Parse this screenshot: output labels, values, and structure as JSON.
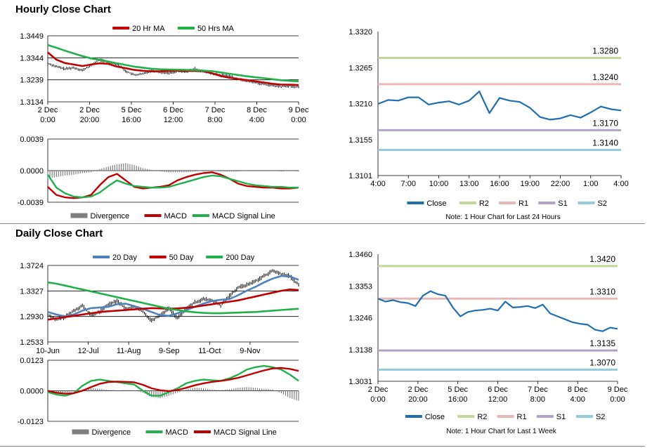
{
  "sections": [
    {
      "id": "hourly",
      "title": "Hourly Close Chart",
      "note": "Note: 1 Hour Chart for Last 24 Hours"
    },
    {
      "id": "daily",
      "title": "Daily Close Chart",
      "note": "Note: 1 Hour Chart for  Last 1 Week"
    }
  ],
  "colors": {
    "red": "#c00000",
    "green": "#21b04b",
    "blue": "#4f81bd",
    "close": "#1f6fb2",
    "R2": "#c3d69b",
    "R1": "#e6b8b7",
    "S1": "#b3a2c7",
    "S2": "#93cddd",
    "divergence": "#7f7f7f"
  },
  "chart_data": [
    {
      "id": "hourly-price",
      "type": "line",
      "legend": [
        "20 Hr MA",
        "50 Hrs MA"
      ],
      "y_ticks": [
        "1.3449",
        "1.3344",
        "1.3239",
        "1.3134"
      ],
      "ylim": [
        1.3134,
        1.3449
      ],
      "x_ticks": [
        [
          "2 Dec",
          "0:00"
        ],
        [
          "2 Dec",
          "20:00"
        ],
        [
          "5 Dec",
          "16:00"
        ],
        [
          "6 Dec",
          "12:00"
        ],
        [
          "7 Dec",
          "8:00"
        ],
        [
          "8 Dec",
          "4:00"
        ],
        [
          "9 Dec",
          "0:00"
        ]
      ],
      "price": [
        1.3318,
        1.3302,
        1.3291,
        1.3297,
        1.3284,
        1.3308,
        1.3335,
        1.3322,
        1.3316,
        1.3281,
        1.3262,
        1.3267,
        1.3284,
        1.3275,
        1.3272,
        1.3281,
        1.3278,
        1.3292,
        1.3279,
        1.3268,
        1.3262,
        1.3258,
        1.3242,
        1.3234,
        1.3227,
        1.3218,
        1.3211,
        1.3206,
        1.321,
        1.3204
      ],
      "series": [
        {
          "name": "20 Hr MA",
          "color": "red",
          "values": [
            1.337,
            1.3335,
            1.3319,
            1.3312,
            1.3305,
            1.3312,
            1.3318,
            1.3315,
            1.3302,
            1.3295,
            1.3286,
            1.3282,
            1.3279,
            1.328,
            1.3282,
            1.3282,
            1.3281,
            1.3281,
            1.328,
            1.327,
            1.3257,
            1.3249,
            1.3243,
            1.3238,
            1.3232,
            1.3226,
            1.322,
            1.3216,
            1.3216,
            1.3214
          ]
        },
        {
          "name": "50 Hrs MA",
          "color": "green",
          "values": [
            1.3405,
            1.3392,
            1.3378,
            1.3365,
            1.3352,
            1.3341,
            1.3334,
            1.3326,
            1.3318,
            1.331,
            1.3302,
            1.3297,
            1.3292,
            1.3289,
            1.3288,
            1.3287,
            1.3286,
            1.3285,
            1.3283,
            1.328,
            1.3274,
            1.3268,
            1.3262,
            1.3256,
            1.3251,
            1.3247,
            1.3242,
            1.3237,
            1.3234,
            1.3232
          ]
        }
      ]
    },
    {
      "id": "hourly-macd",
      "type": "line",
      "legend": [
        "Divergence",
        "MACD",
        "MACD Signal Line"
      ],
      "y_ticks": [
        "0.0039",
        "0.0000",
        "-0.0039"
      ],
      "ylim": [
        -0.0039,
        0.0039
      ],
      "divergence": [
        -0.001,
        -0.0008,
        -0.0006,
        -0.0005,
        -0.0003,
        -0.0002,
        0.0002,
        0.0005,
        0.0008,
        0.0009,
        0.0007,
        0.0003,
        0.0001,
        -0.0001,
        -0.0002,
        -0.0002,
        -0.0002,
        -0.0001,
        0.0,
        0.0,
        -0.0001,
        -0.0001,
        -0.0001,
        0.0,
        0.0,
        0.0,
        0.0,
        -0.0001,
        0.0,
        -0.0001
      ],
      "series": [
        {
          "name": "MACD",
          "color": "red",
          "values": [
            -0.002,
            -0.003,
            -0.0033,
            -0.0034,
            -0.0033,
            -0.003,
            -0.0018,
            -0.0008,
            -0.0004,
            -0.0012,
            -0.002,
            -0.0022,
            -0.0021,
            -0.002,
            -0.0018,
            -0.0012,
            -0.0008,
            -0.0005,
            -0.0003,
            -0.0002,
            -0.0005,
            -0.001,
            -0.0016,
            -0.0019,
            -0.002,
            -0.0021,
            -0.0021,
            -0.0022,
            -0.0022,
            -0.0021
          ]
        },
        {
          "name": "MACD Signal Line",
          "color": "green",
          "values": [
            -0.0005,
            -0.0021,
            -0.0028,
            -0.0032,
            -0.0033,
            -0.0032,
            -0.0027,
            -0.0019,
            -0.0012,
            -0.0016,
            -0.0019,
            -0.002,
            -0.0021,
            -0.0021,
            -0.002,
            -0.0017,
            -0.0014,
            -0.0011,
            -0.0008,
            -0.0006,
            -0.0007,
            -0.001,
            -0.0013,
            -0.0016,
            -0.0018,
            -0.0019,
            -0.002,
            -0.002,
            -0.0021,
            -0.0021
          ]
        }
      ]
    },
    {
      "id": "hourly-close",
      "type": "line",
      "y_ticks": [
        "1.3320",
        "1.3265",
        "1.3210",
        "1.3155",
        "1.3101"
      ],
      "ylim": [
        1.3101,
        1.332
      ],
      "x_ticks": [
        "4:00",
        "7:00",
        "10:00",
        "13:00",
        "16:00",
        "19:00",
        "22:00",
        "1:00",
        "4:00"
      ],
      "levels": [
        {
          "name": "R2",
          "value": 1.328,
          "label": "1.3280",
          "color": "R2"
        },
        {
          "name": "R1",
          "value": 1.324,
          "label": "1.3240",
          "color": "R1"
        },
        {
          "name": "S1",
          "value": 1.317,
          "label": "1.3170",
          "color": "S1"
        },
        {
          "name": "S2",
          "value": 1.314,
          "label": "1.3140",
          "color": "S2"
        }
      ],
      "legend": [
        "Close",
        "R2",
        "R1",
        "S1",
        "S2"
      ],
      "series": [
        {
          "name": "Close",
          "color": "close",
          "values": [
            1.321,
            1.3216,
            1.3215,
            1.322,
            1.322,
            1.3209,
            1.3212,
            1.3214,
            1.3209,
            1.3215,
            1.3229,
            1.3196,
            1.3219,
            1.3215,
            1.3213,
            1.3204,
            1.319,
            1.3186,
            1.3188,
            1.3193,
            1.3189,
            1.3197,
            1.3206,
            1.3202,
            1.32
          ]
        }
      ]
    },
    {
      "id": "daily-price",
      "type": "line",
      "legend": [
        "20 Day",
        "50 Day",
        "200 Day"
      ],
      "y_ticks": [
        "1.3724",
        "1.3327",
        "1.2930",
        "1.2533"
      ],
      "ylim": [
        1.2533,
        1.3724
      ],
      "x_ticks": [
        "10-Jun",
        "12-Jul",
        "11-Aug",
        "9-Sep",
        "11-Oct",
        "9-Nov"
      ],
      "price": [
        1.296,
        1.288,
        1.292,
        1.302,
        1.31,
        1.295,
        1.3,
        1.312,
        1.318,
        1.305,
        1.308,
        1.3,
        1.287,
        1.295,
        1.306,
        1.29,
        1.305,
        1.315,
        1.32,
        1.318,
        1.31,
        1.325,
        1.338,
        1.342,
        1.348,
        1.356,
        1.364,
        1.359,
        1.356,
        1.342
      ],
      "series": [
        {
          "name": "20 Day",
          "color": "blue",
          "values": [
            1.3,
            1.296,
            1.293,
            1.296,
            1.302,
            1.306,
            1.307,
            1.308,
            1.312,
            1.313,
            1.309,
            1.305,
            1.3,
            1.295,
            1.294,
            1.298,
            1.303,
            1.308,
            1.313,
            1.317,
            1.319,
            1.32,
            1.326,
            1.333,
            1.339,
            1.346,
            1.352,
            1.356,
            1.355,
            1.35
          ]
        },
        {
          "name": "50 Day",
          "color": "red",
          "values": [
            1.288,
            1.29,
            1.292,
            1.294,
            1.296,
            1.298,
            1.3,
            1.301,
            1.302,
            1.303,
            1.304,
            1.305,
            1.306,
            1.3055,
            1.305,
            1.3055,
            1.3065,
            1.308,
            1.31,
            1.312,
            1.314,
            1.316,
            1.318,
            1.321,
            1.324,
            1.327,
            1.33,
            1.333,
            1.335,
            1.334
          ]
        },
        {
          "name": "200 Day",
          "color": "green",
          "values": [
            1.346,
            1.344,
            1.341,
            1.338,
            1.335,
            1.332,
            1.329,
            1.326,
            1.323,
            1.32,
            1.317,
            1.314,
            1.311,
            1.308,
            1.305,
            1.303,
            1.301,
            1.2995,
            1.2985,
            1.298,
            1.298,
            1.2985,
            1.299,
            1.2995,
            1.3,
            1.301,
            1.302,
            1.303,
            1.304,
            1.305
          ]
        }
      ]
    },
    {
      "id": "daily-macd",
      "type": "line",
      "legend": [
        "Divergence",
        "MACD",
        "MACD Signal Line"
      ],
      "y_ticks": [
        "0.0123",
        "0.0000",
        "-0.0123"
      ],
      "ylim": [
        -0.0123,
        0.0123
      ],
      "divergence": [
        -0.0005,
        -0.001,
        -0.0008,
        -0.0003,
        0.0005,
        0.001,
        0.0008,
        0.0004,
        0.0002,
        0.0003,
        0.0002,
        -0.0008,
        -0.0025,
        -0.003,
        -0.002,
        -0.0008,
        0.0005,
        0.0012,
        0.001,
        0.0005,
        0.0003,
        0.0006,
        0.0012,
        0.0015,
        0.0012,
        0.0008,
        0.0005,
        -0.001,
        -0.003,
        -0.004
      ],
      "series": [
        {
          "name": "MACD",
          "color": "green",
          "values": [
            -0.0005,
            -0.0015,
            -0.002,
            -0.001,
            0.002,
            0.004,
            0.0045,
            0.004,
            0.0035,
            0.003,
            0.0025,
            0.0,
            -0.002,
            -0.002,
            -0.0005,
            0.001,
            0.003,
            0.004,
            0.0045,
            0.0042,
            0.004,
            0.005,
            0.0065,
            0.0085,
            0.0095,
            0.01,
            0.0095,
            0.0085,
            0.0065,
            0.004
          ]
        },
        {
          "name": "MACD Signal Line",
          "color": "red",
          "values": [
            0.0,
            -0.0008,
            -0.0012,
            -0.001,
            0.0,
            0.0015,
            0.0028,
            0.0035,
            0.0037,
            0.0036,
            0.0034,
            0.0024,
            0.001,
            0.0002,
            -0.0001,
            0.0003,
            0.0012,
            0.0022,
            0.003,
            0.0036,
            0.004,
            0.0045,
            0.0052,
            0.0062,
            0.0072,
            0.0082,
            0.009,
            0.0092,
            0.0088,
            0.008
          ]
        }
      ]
    },
    {
      "id": "daily-close",
      "type": "line",
      "y_ticks": [
        "1.3460",
        "1.3353",
        "1.3246",
        "1.3138",
        "1.3031"
      ],
      "ylim": [
        1.3031,
        1.346
      ],
      "x_ticks": [
        [
          "2 Dec",
          "0:00"
        ],
        [
          "2 Dec",
          "20:00"
        ],
        [
          "5 Dec",
          "16:00"
        ],
        [
          "6 Dec",
          "12:00"
        ],
        [
          "7 Dec",
          "8:00"
        ],
        [
          "8 Dec",
          "4:00"
        ],
        [
          "9 Dec",
          "0:00"
        ]
      ],
      "levels": [
        {
          "name": "R2",
          "value": 1.342,
          "label": "1.3420",
          "color": "R2"
        },
        {
          "name": "R1",
          "value": 1.331,
          "label": "1.3310",
          "color": "R1"
        },
        {
          "name": "S1",
          "value": 1.3135,
          "label": "1.3135",
          "color": "S1"
        },
        {
          "name": "S2",
          "value": 1.307,
          "label": "1.3070",
          "color": "S2"
        }
      ],
      "legend": [
        "Close",
        "R2",
        "R1",
        "S1",
        "S2"
      ],
      "series": [
        {
          "name": "Close",
          "color": "close",
          "values": [
            1.331,
            1.33,
            1.3305,
            1.3298,
            1.3295,
            1.3285,
            1.332,
            1.3335,
            1.3325,
            1.332,
            1.328,
            1.325,
            1.3265,
            1.327,
            1.3272,
            1.3276,
            1.327,
            1.33,
            1.328,
            1.3282,
            1.3285,
            1.3278,
            1.329,
            1.326,
            1.325,
            1.324,
            1.323,
            1.3225,
            1.3222,
            1.3205,
            1.32,
            1.3212,
            1.3208
          ]
        }
      ]
    }
  ]
}
